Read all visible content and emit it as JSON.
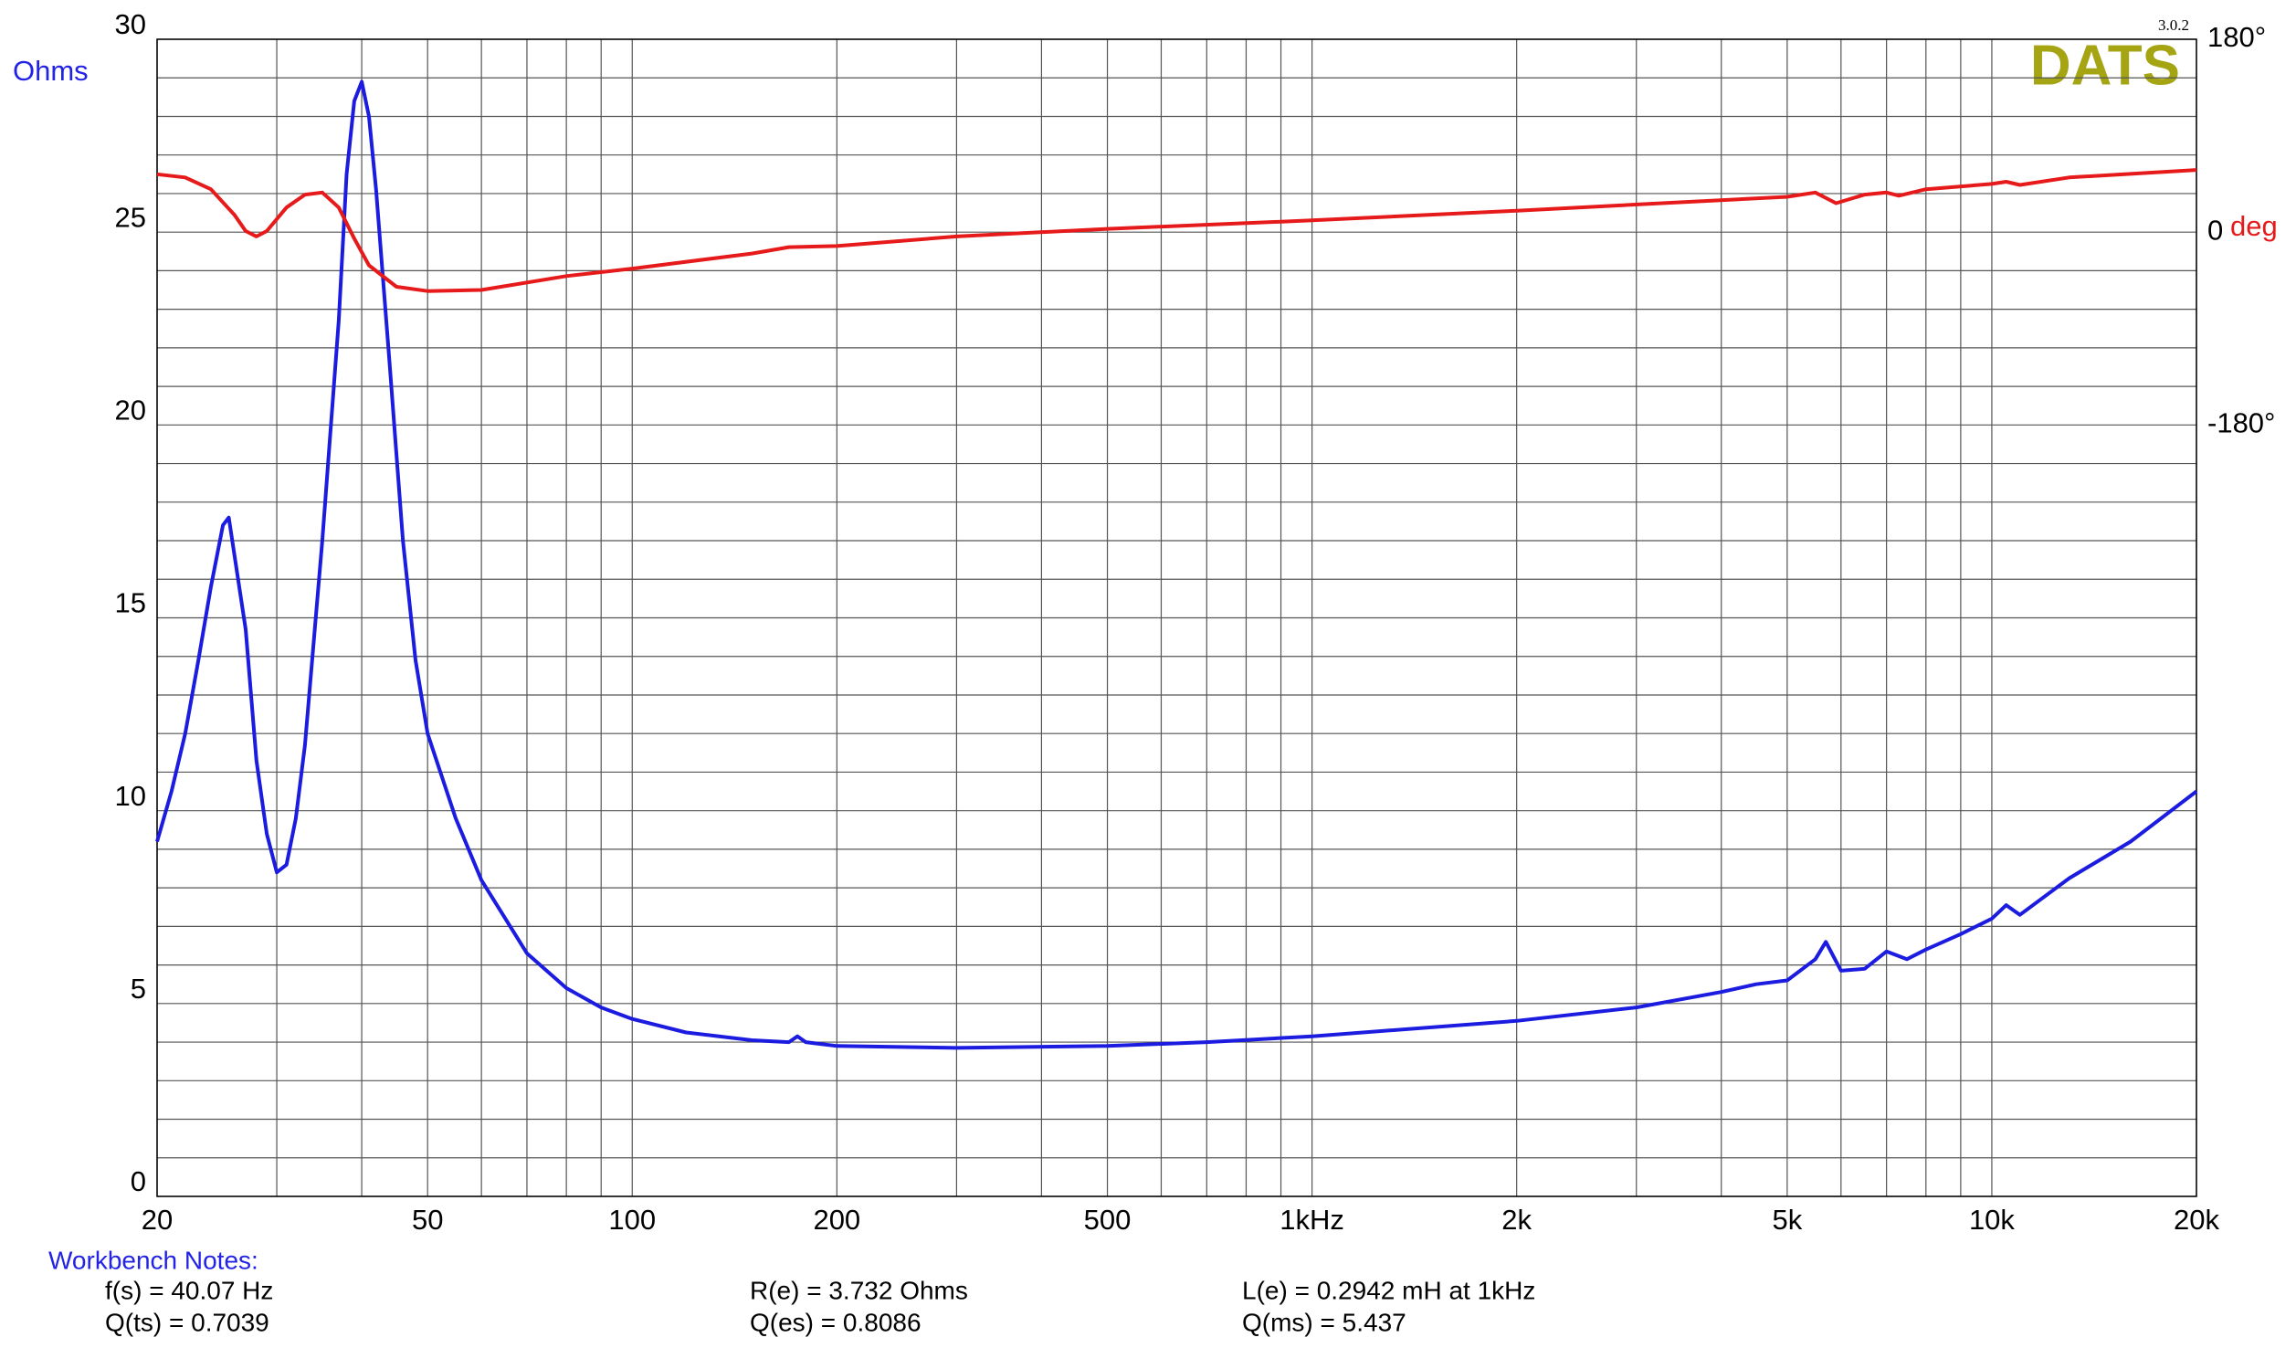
{
  "chart_data": {
    "type": "line",
    "y_label": "Ohms",
    "y2_label": "deg",
    "logo": "DATS",
    "version": "3.0.2",
    "log_x": true,
    "grid": true,
    "xlim": [
      20,
      20000
    ],
    "xticks": [
      20,
      50,
      100,
      200,
      500,
      {
        "value": 1000,
        "label": "1kHz"
      },
      {
        "value": 2000,
        "label": "2k"
      },
      {
        "value": 5000,
        "label": "5k"
      },
      {
        "value": 10000,
        "label": "10k"
      },
      {
        "value": 20000,
        "label": "20k"
      }
    ],
    "x_minor_ticks": [
      30,
      40,
      60,
      70,
      80,
      90,
      300,
      400,
      600,
      700,
      800,
      900,
      3000,
      4000,
      6000,
      7000,
      8000,
      9000
    ],
    "ylim": [
      0,
      30
    ],
    "yticks": [
      0,
      5,
      10,
      15,
      20,
      25,
      30
    ],
    "y_minor_ticks": [
      1,
      2,
      3,
      4,
      6,
      7,
      8,
      9,
      11,
      12,
      13,
      14,
      16,
      17,
      18,
      19,
      21,
      22,
      23,
      24,
      26,
      27,
      28,
      29
    ],
    "y2lim": [
      -900,
      180
    ],
    "y2ticks": [
      {
        "value": 180,
        "label": "180°"
      },
      0,
      {
        "value": -180,
        "label": "-180°"
      }
    ],
    "series": [
      {
        "color": "#1c1ce0",
        "axis": "y",
        "x": [
          20,
          21,
          22,
          23,
          24,
          25,
          25.5,
          27,
          28,
          29,
          30,
          31,
          32,
          33,
          35,
          37,
          38,
          39,
          40,
          41,
          42,
          44,
          46,
          48,
          50,
          55,
          60,
          70,
          80,
          90,
          100,
          120,
          150,
          170,
          175,
          180,
          200,
          300,
          500,
          700,
          1000,
          2000,
          3000,
          4000,
          4500,
          5000,
          5500,
          5700,
          6000,
          6500,
          7000,
          7500,
          8000,
          9000,
          10000,
          10500,
          11000,
          13000,
          16000,
          20000
        ],
        "values": [
          9.2,
          10.5,
          12,
          13.9,
          15.8,
          17.4,
          17.6,
          14.7,
          11.3,
          9.4,
          8.4,
          8.6,
          9.8,
          11.7,
          17,
          22.7,
          26.5,
          28.4,
          28.9,
          28,
          26.1,
          21.5,
          17,
          13.9,
          12,
          9.8,
          8.2,
          6.3,
          5.4,
          4.9,
          4.6,
          4.25,
          4.05,
          4.0,
          4.15,
          4.0,
          3.9,
          3.85,
          3.9,
          4.0,
          4.15,
          4.55,
          4.9,
          5.3,
          5.5,
          5.6,
          6.15,
          6.6,
          5.85,
          5.9,
          6.35,
          6.15,
          6.4,
          6.8,
          7.2,
          7.55,
          7.3,
          8.25,
          9.2,
          10.5
        ]
      },
      {
        "color": "#e61a1a",
        "axis": "y2",
        "x": [
          20,
          22,
          24,
          26,
          27,
          28,
          29,
          31,
          33,
          35,
          37,
          39,
          41,
          45,
          50,
          60,
          80,
          100,
          150,
          170,
          200,
          300,
          500,
          1000,
          2000,
          5000,
          5500,
          5900,
          6500,
          7000,
          7300,
          8000,
          10000,
          10500,
          11000,
          13000,
          20000
        ],
        "values": [
          54,
          51,
          40,
          16,
          1,
          -4,
          1,
          23,
          35,
          37,
          23,
          -6,
          -31,
          -51,
          -55,
          -54,
          -41,
          -34,
          -20,
          -14,
          -13,
          -4,
          3,
          11,
          20,
          33,
          37,
          27,
          35,
          37,
          34,
          40,
          45,
          47,
          44,
          51,
          58
        ]
      }
    ],
    "notes_title": "Workbench Notes:",
    "notes": [
      "f(s) = 40.07 Hz",
      "Q(ts) = 0.7039",
      "R(e) = 3.732 Ohms",
      "Q(es) = 0.8086",
      "L(e) = 0.2942 mH at 1kHz",
      "Q(ms) = 5.437"
    ]
  }
}
